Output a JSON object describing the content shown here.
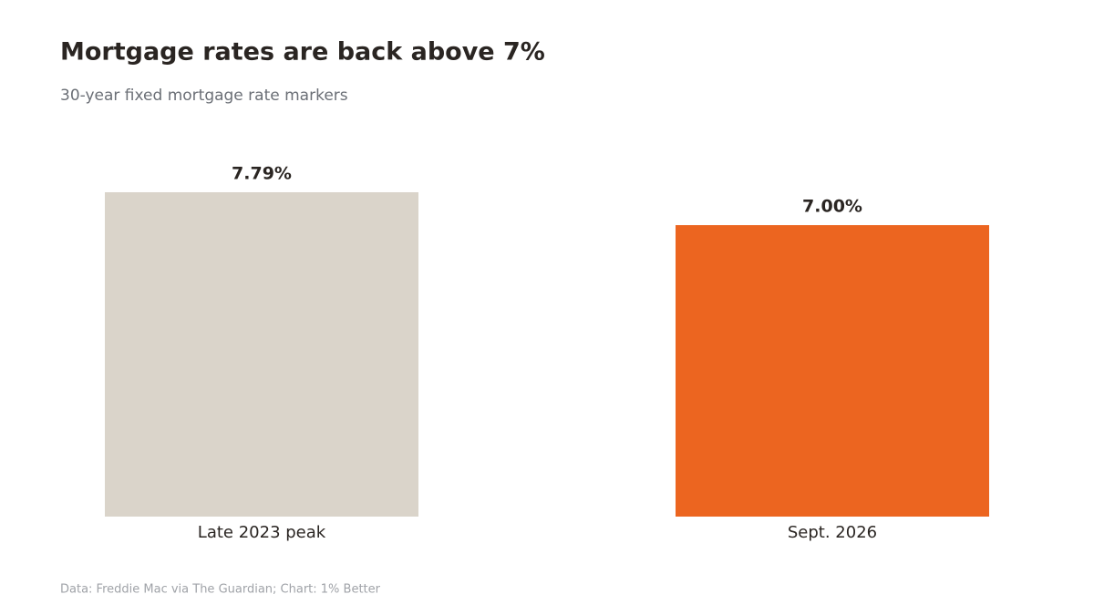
{
  "chart_data": {
    "type": "bar",
    "title": "Mortgage rates are back above 7%",
    "subtitle": "30-year fixed mortgage rate markers",
    "categories": [
      "Late 2023 peak",
      "Sept. 2026"
    ],
    "values": [
      7.79,
      7.0
    ],
    "value_labels": [
      "7.79%",
      "7.00%"
    ],
    "colors": [
      "#dad4ca",
      "#ec6520"
    ],
    "source": "Data: Freddie Mac via The Guardian; Chart: 1% Better"
  }
}
